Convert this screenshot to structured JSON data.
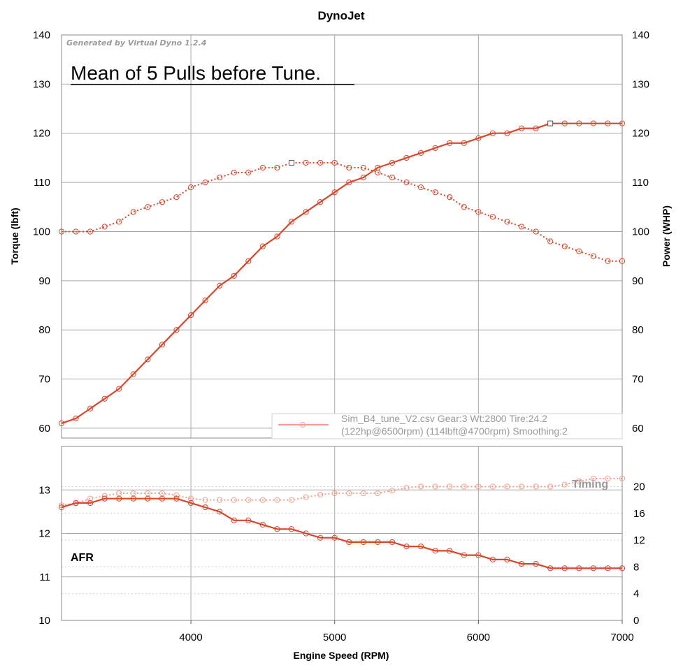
{
  "colors": {
    "series": "#d9462a",
    "timing": "#f0a08e",
    "grid_major": "#a8a8a8",
    "grid_minor": "#cfcfcf",
    "frame": "#888888"
  },
  "chart_data": {
    "type": "line",
    "title": "DynoJet",
    "generated_by": "Generated by Virtual Dyno 1.2.4",
    "annotation": "Mean of 5 Pulls before Tune.",
    "xlabel": "Engine Speed (RPM)",
    "x_ticks": [
      "4000",
      "5000",
      "6000",
      "7000"
    ],
    "xlim": [
      3100,
      7000
    ],
    "legend": {
      "line1": "Sim_B4_tune_V2.csv Gear:3 Wt:2800 Tire:24.2",
      "line2": "(122hp@6500rpm) (114lbft@4700rpm) Smoothing:2",
      "placement": "bottom-right of upper panel"
    },
    "upper_panel": {
      "ylabel_left": "Torque (lbft)",
      "ylabel_right": "Power (WHP)",
      "ylim": [
        58,
        140
      ],
      "left_ticks": [
        "60",
        "70",
        "80",
        "90",
        "100",
        "110",
        "120",
        "130",
        "140"
      ],
      "right_ticks": [
        "60",
        "70",
        "80",
        "90",
        "100",
        "110",
        "120",
        "130",
        "140"
      ],
      "series": [
        {
          "name": "Power (WHP)",
          "style": "solid",
          "x": [
            3100,
            3200,
            3300,
            3400,
            3500,
            3600,
            3700,
            3800,
            3900,
            4000,
            4100,
            4200,
            4300,
            4400,
            4500,
            4600,
            4700,
            4800,
            4900,
            5000,
            5100,
            5200,
            5300,
            5400,
            5500,
            5600,
            5700,
            5800,
            5900,
            6000,
            6100,
            6200,
            6300,
            6400,
            6500,
            6600,
            6700,
            6800,
            6900,
            7000
          ],
          "values": [
            61,
            62,
            64,
            66,
            68,
            71,
            74,
            77,
            80,
            83,
            86,
            89,
            91,
            94,
            97,
            99,
            102,
            104,
            106,
            108,
            110,
            111,
            113,
            114,
            115,
            116,
            117,
            118,
            118,
            119,
            120,
            120,
            121,
            121,
            122,
            122,
            122,
            122,
            122,
            122
          ],
          "peak_marker": {
            "x": 6500,
            "value": 122
          }
        },
        {
          "name": "Torque (lbft)",
          "style": "dotted",
          "x": [
            3100,
            3200,
            3300,
            3400,
            3500,
            3600,
            3700,
            3800,
            3900,
            4000,
            4100,
            4200,
            4300,
            4400,
            4500,
            4600,
            4700,
            4800,
            4900,
            5000,
            5100,
            5200,
            5300,
            5400,
            5500,
            5600,
            5700,
            5800,
            5900,
            6000,
            6100,
            6200,
            6300,
            6400,
            6500,
            6600,
            6700,
            6800,
            6900,
            7000
          ],
          "values": [
            100,
            100,
            100,
            101,
            102,
            104,
            105,
            106,
            107,
            109,
            110,
            111,
            112,
            112,
            113,
            113,
            114,
            114,
            114,
            114,
            113,
            113,
            112,
            111,
            110,
            109,
            108,
            107,
            105,
            104,
            103,
            102,
            101,
            100,
            98,
            97,
            96,
            95,
            94,
            94
          ],
          "peak_marker": {
            "x": 4700,
            "value": 114
          }
        }
      ]
    },
    "lower_panel": {
      "ylim_left": [
        10,
        14
      ],
      "left_ticks": [
        "10",
        "11",
        "12",
        "13"
      ],
      "ylim_right": [
        0,
        26
      ],
      "right_ticks": [
        "0",
        "4",
        "8",
        "12",
        "16",
        "20"
      ],
      "afr_label": "AFR",
      "timing_label": "Timing",
      "series": [
        {
          "name": "AFR",
          "axis": "left",
          "x": [
            3100,
            3200,
            3300,
            3400,
            3500,
            3600,
            3700,
            3800,
            3900,
            4000,
            4100,
            4200,
            4300,
            4400,
            4500,
            4600,
            4700,
            4800,
            4900,
            5000,
            5100,
            5200,
            5300,
            5400,
            5500,
            5600,
            5700,
            5800,
            5900,
            6000,
            6100,
            6200,
            6300,
            6400,
            6500,
            6600,
            6700,
            6800,
            6900,
            7000
          ],
          "values": [
            12.6,
            12.7,
            12.7,
            12.8,
            12.8,
            12.8,
            12.8,
            12.8,
            12.8,
            12.7,
            12.6,
            12.5,
            12.3,
            12.3,
            12.2,
            12.1,
            12.1,
            12.0,
            11.9,
            11.9,
            11.8,
            11.8,
            11.8,
            11.8,
            11.7,
            11.7,
            11.6,
            11.6,
            11.5,
            11.5,
            11.4,
            11.4,
            11.3,
            11.3,
            11.2,
            11.2,
            11.2,
            11.2,
            11.2,
            11.2
          ]
        },
        {
          "name": "Timing",
          "axis": "right",
          "x": [
            3100,
            3200,
            3300,
            3400,
            3500,
            3600,
            3700,
            3800,
            3900,
            4000,
            4100,
            4200,
            4300,
            4400,
            4500,
            4600,
            4700,
            4800,
            4900,
            5000,
            5100,
            5200,
            5300,
            5400,
            5500,
            5600,
            5700,
            5800,
            5900,
            6000,
            6100,
            6200,
            6300,
            6400,
            6500,
            6600,
            6700,
            6800,
            6900,
            7000
          ],
          "values": [
            17.2,
            17.5,
            18.2,
            18.6,
            19.0,
            19.0,
            19.0,
            19.0,
            18.7,
            18.2,
            18.0,
            18.0,
            18.0,
            18.0,
            18.0,
            18.0,
            18.0,
            18.4,
            18.8,
            19.0,
            19.0,
            19.0,
            19.0,
            19.4,
            19.8,
            20.0,
            20.0,
            20.0,
            20.0,
            20.0,
            20.0,
            20.0,
            20.0,
            20.0,
            20.0,
            20.3,
            20.8,
            21.2,
            21.2,
            21.2
          ]
        }
      ]
    }
  }
}
